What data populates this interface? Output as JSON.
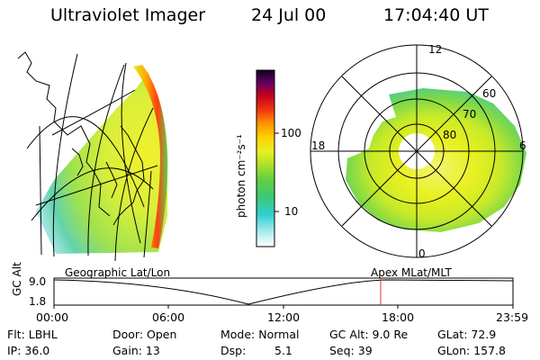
{
  "header": {
    "title": "Ultraviolet Imager",
    "date": "24 Jul 00",
    "time": "17:04:40 UT"
  },
  "colorbar": {
    "unit_label": "photon cm⁻²s⁻¹",
    "ticks": [
      "100",
      "10"
    ],
    "colors": [
      "#ffffff",
      "#b0ecec",
      "#2fd0d0",
      "#3cc878",
      "#60d040",
      "#a8e028",
      "#e8f020",
      "#ffd000",
      "#ff9000",
      "#f03010",
      "#c00020",
      "#600060",
      "#100020"
    ]
  },
  "polar_plot": {
    "mlt_labels": {
      "top": "12",
      "left": "18",
      "right": "6",
      "bottom": "0"
    },
    "lat_labels": [
      "60",
      "70",
      "80"
    ]
  },
  "projections": {
    "left_label": "Geographic Lat/Lon",
    "right_label": "Apex MLat/MLT"
  },
  "altitude_plot": {
    "ylabel": "GC Alt",
    "yticks": [
      "9.0",
      "1.8"
    ],
    "xticks": [
      "00:00",
      "06:00",
      "12:00",
      "18:00",
      "23:59"
    ],
    "marker_color": "#e03030",
    "current_time_hours": 17.08
  },
  "info": {
    "filter": "Flt: LBHL",
    "ip": "IP: 36.0",
    "door": "Door: Open",
    "gain": "Gain: 13",
    "mode": "Mode: Normal",
    "dsp_label": "Dsp:",
    "dsp_value": "5.1",
    "gc_alt": "GC Alt: 9.0 Re",
    "seq": "Seq: 39",
    "glat": "GLat: 72.9",
    "glon": "GLon: 157.8"
  }
}
